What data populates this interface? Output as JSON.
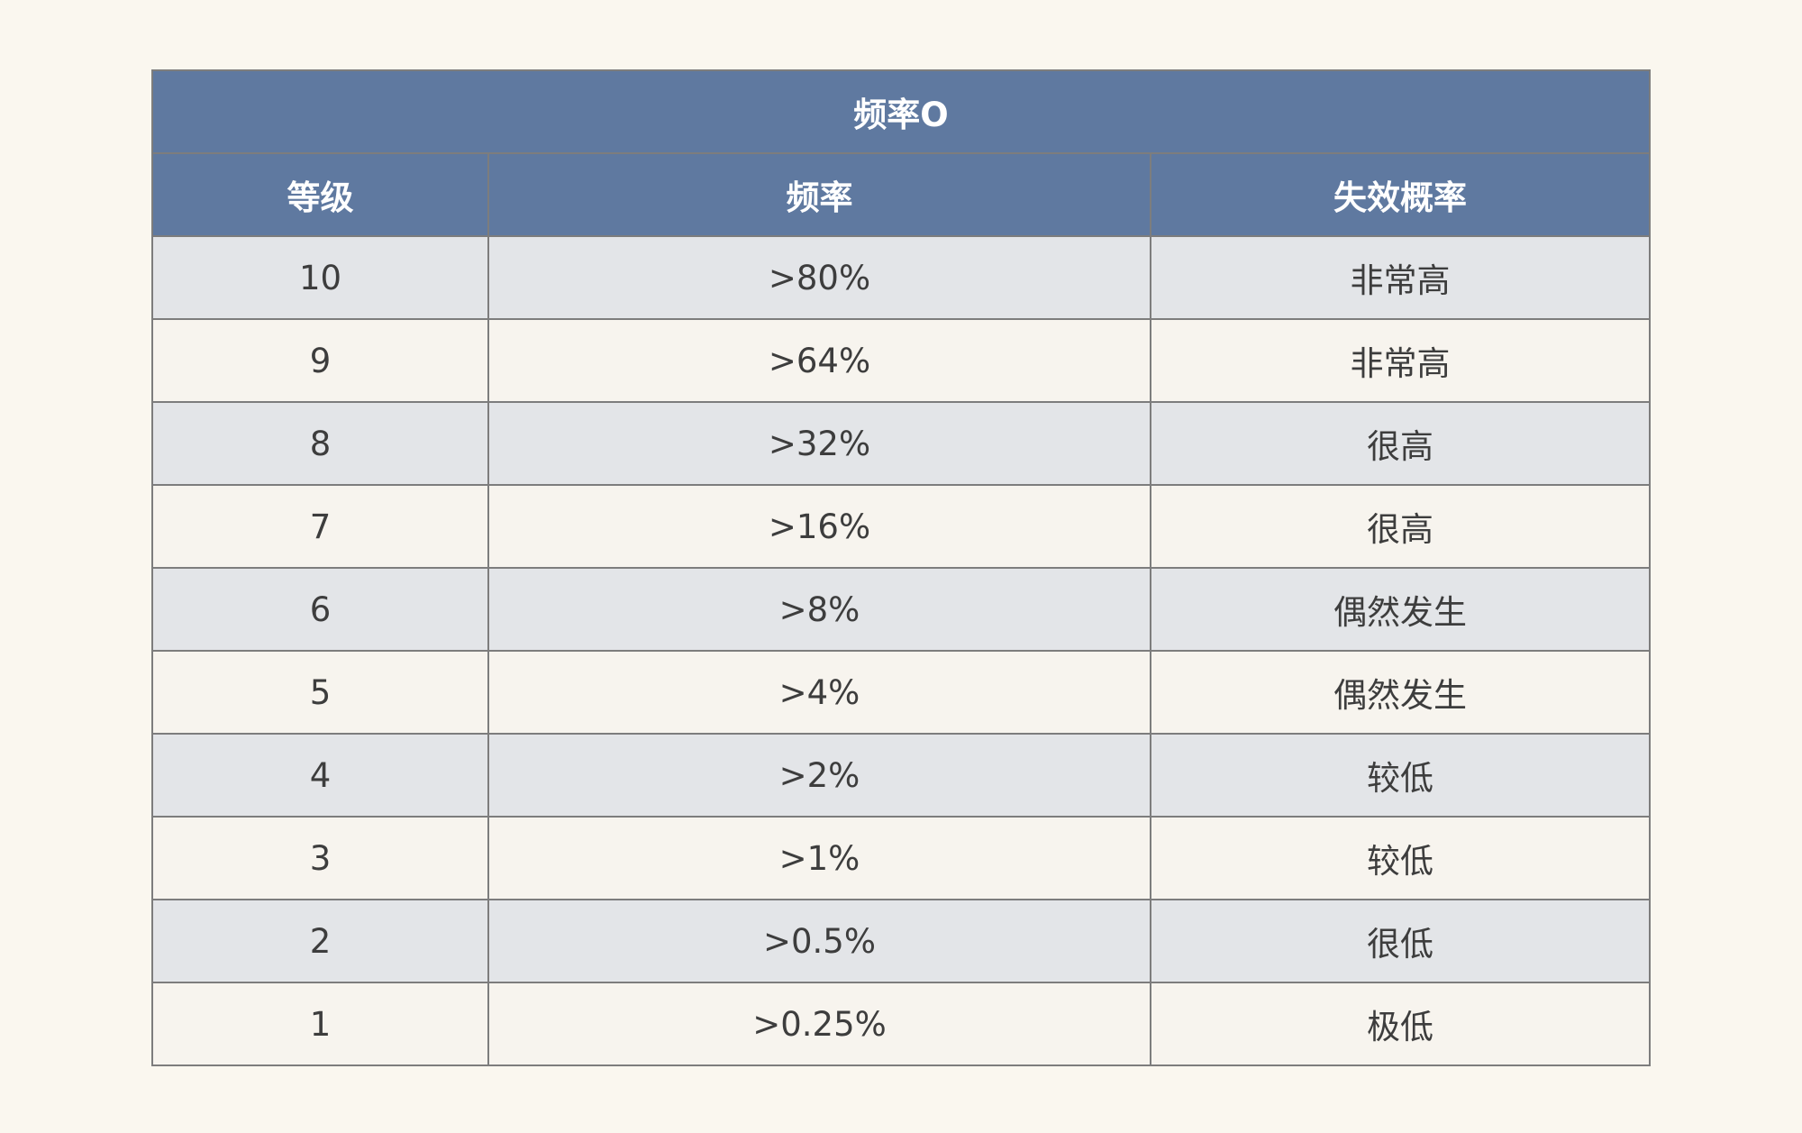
{
  "table": {
    "title": "频率O",
    "headers": [
      "等级",
      "频率",
      "失效概率"
    ],
    "rows": [
      [
        10,
        ">80%",
        "非常高"
      ],
      [
        9,
        ">64%",
        "非常高"
      ],
      [
        8,
        ">32%",
        "很高"
      ],
      [
        7,
        ">16%",
        "很高"
      ],
      [
        6,
        ">8%",
        "偶然发生"
      ],
      [
        5,
        ">4%",
        "偶然发生"
      ],
      [
        4,
        ">2%",
        "较低"
      ],
      [
        3,
        ">1%",
        "较低"
      ],
      [
        2,
        ">0.5%",
        "很低"
      ],
      [
        1,
        ">0.25%",
        "极低"
      ]
    ]
  }
}
